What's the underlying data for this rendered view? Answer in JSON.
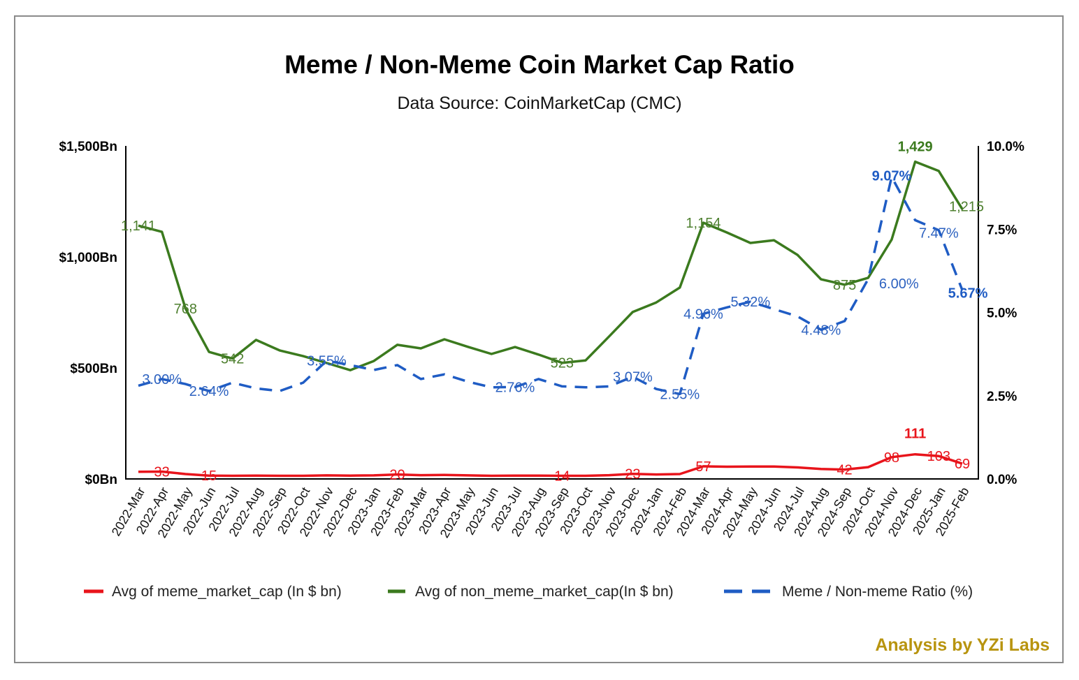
{
  "chart_data": {
    "type": "line",
    "title": "Meme / Non-Meme Coin Market Cap Ratio",
    "subtitle": "Data Source: CoinMarketCap (CMC)",
    "categories": [
      "2022-Mar",
      "2022-Apr",
      "2022-May",
      "2022-Jun",
      "2022-Jul",
      "2022-Aug",
      "2022-Sep",
      "2022-Oct",
      "2022-Nov",
      "2022-Dec",
      "2023-Jan",
      "2023-Feb",
      "2023-Mar",
      "2023-Apr",
      "2023-May",
      "2023-Jun",
      "2023-Jul",
      "2023-Aug",
      "2023-Sep",
      "2023-Oct",
      "2023-Nov",
      "2023-Dec",
      "2024-Jan",
      "2024-Feb",
      "2024-Mar",
      "2024-Apr",
      "2024-May",
      "2024-Jun",
      "2024-Jul",
      "2024-Aug",
      "2024-Sep",
      "2024-Oct",
      "2024-Nov",
      "2024-Dec",
      "2025-Jan",
      "2025-Feb"
    ],
    "left_axis": {
      "ylim": [
        0,
        1500
      ],
      "ticks": [
        "$0Bn",
        "$500Bn",
        "$1,000Bn",
        "$1,500Bn"
      ],
      "tick_values": [
        0,
        500,
        1000,
        1500
      ]
    },
    "right_axis": {
      "ylim": [
        0,
        10
      ],
      "ticks": [
        "0.0%",
        "2.5%",
        "5.0%",
        "7.5%",
        "10.0%"
      ],
      "tick_values": [
        0,
        2.5,
        5,
        7.5,
        10
      ]
    },
    "grid": false,
    "legend_position": "bottom",
    "series": [
      {
        "name": "Avg of meme_market_cap (In $ bn)",
        "axis": "left",
        "color": "#e8141b",
        "style": "solid",
        "values": [
          32,
          33,
          22,
          15,
          14,
          15,
          14,
          14,
          16,
          15,
          16,
          20,
          17,
          18,
          16,
          14,
          15,
          15,
          14,
          14,
          17,
          23,
          20,
          22,
          57,
          55,
          56,
          56,
          52,
          45,
          42,
          53,
          98,
          111,
          103,
          69
        ],
        "labels": {
          "1": "33",
          "3": "15",
          "11": "20",
          "18": "14",
          "21": "23",
          "24": "57",
          "30": "42",
          "32": "98",
          "33": "111",
          "34": "103",
          "35": "69"
        },
        "bold_labels": [
          "33"
        ]
      },
      {
        "name": "Avg of non_meme_market_cap(In $ bn)",
        "axis": "left",
        "color": "#3b7a1e",
        "style": "solid",
        "values": [
          1141,
          1113,
          768,
          572,
          542,
          626,
          579,
          553,
          522,
          490,
          531,
          604,
          588,
          629,
          595,
          563,
          594,
          560,
          523,
          534,
          642,
          752,
          795,
          862,
          1154,
          1110,
          1063,
          1075,
          1009,
          899,
          875,
          906,
          1078,
          1429,
          1387,
          1215
        ],
        "labels": {
          "0": "1,141",
          "2": "768",
          "4": "542",
          "18": "523",
          "24": "1,154",
          "30": "875",
          "33": "1,429",
          "35": "1,215"
        },
        "bold_labels": [
          "33"
        ]
      },
      {
        "name": "Meme / Non-meme Ratio (%)",
        "axis": "right",
        "color": "#1f5cc4",
        "style": "dashed",
        "values": [
          2.8,
          3.0,
          2.85,
          2.64,
          2.89,
          2.72,
          2.64,
          2.89,
          3.55,
          3.42,
          3.27,
          3.42,
          3.0,
          3.14,
          2.92,
          2.75,
          2.76,
          3.0,
          2.78,
          2.75,
          2.78,
          3.07,
          2.7,
          2.55,
          4.96,
          5.15,
          5.32,
          5.1,
          4.88,
          4.48,
          4.74,
          6.0,
          9.07,
          7.77,
          7.47,
          5.67
        ],
        "labels": {
          "1": "3.00%",
          "3": "2.64%",
          "8": "3.55%",
          "16": "2.76%",
          "21": "3.07%",
          "23": "2.55%",
          "24": "4.96%",
          "26": "5.32%",
          "29": "4.48%",
          "31": "6.00%",
          "32": "9.07%",
          "34": "7.47%",
          "35": "5.67%"
        },
        "bold_labels": [
          "32",
          "35"
        ]
      }
    ]
  },
  "footer": {
    "credit": "Analysis by YZi Labs"
  }
}
